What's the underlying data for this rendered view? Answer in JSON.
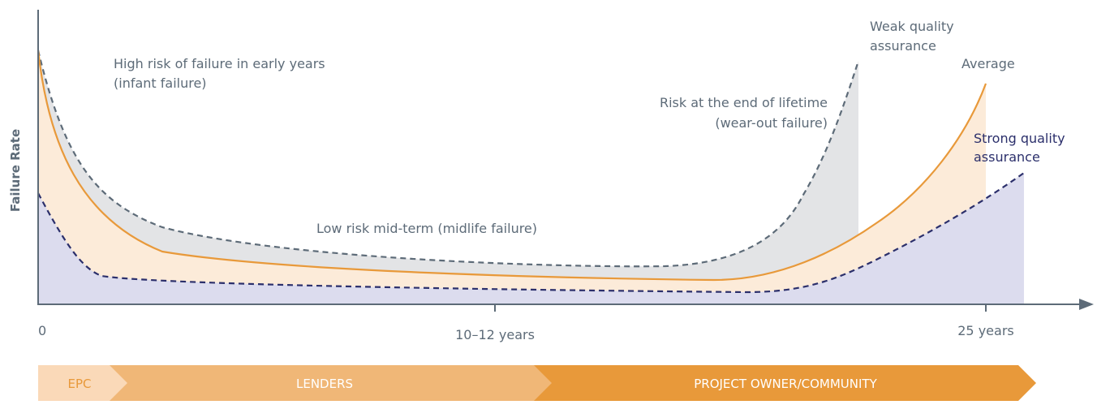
{
  "y_axis_label": "Failure Rate",
  "x_labels": [
    "0",
    "10–12 years",
    "25 years"
  ],
  "annotations": {
    "early": [
      "High risk of failure in early years",
      "(infant failure)"
    ],
    "mid": "Low risk mid-term (midlife failure)",
    "end": [
      "Risk at the end of lifetime",
      "(wear-out failure)"
    ]
  },
  "curves": {
    "weak": [
      "Weak quality",
      "assurance"
    ],
    "average": "Average",
    "strong": [
      "Strong quality",
      "assurance"
    ]
  },
  "phases": [
    "EPC",
    "LENDERS",
    "PROJECT OWNER/COMMUNITY"
  ]
}
